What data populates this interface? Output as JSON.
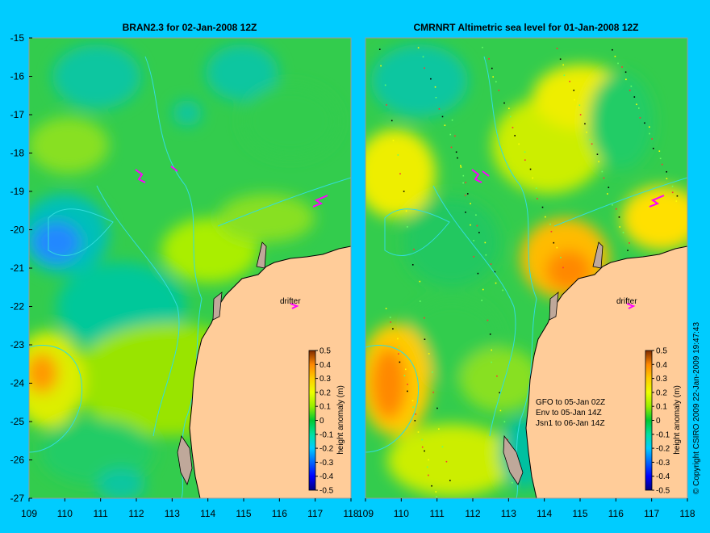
{
  "panels": [
    {
      "title": "BRAN2.3 for 02-Jan-2008 12Z",
      "drifter_label": "drifter",
      "colorbar_label": "height anomaly (m)",
      "annotations": []
    },
    {
      "title": "CMRNRT Altimetric sea level  for 01-Jan-2008 12Z",
      "drifter_label": "drifter",
      "colorbar_label": "height anomaly (m)",
      "annotations": [
        "GFO to 05-Jan 02Z",
        "Env to 05-Jan 14Z",
        "Jsn1 to 06-Jan 14Z"
      ]
    }
  ],
  "axes": {
    "lon_ticks": [
      "109",
      "110",
      "111",
      "112",
      "113",
      "114",
      "115",
      "116",
      "117",
      "118"
    ],
    "lat_ticks": [
      "-15",
      "-16",
      "-17",
      "-18",
      "-19",
      "-20",
      "-21",
      "-22",
      "-23",
      "-24",
      "-25",
      "-26",
      "-27"
    ],
    "lon_range": [
      109,
      118
    ],
    "lat_range": [
      -27,
      -15
    ]
  },
  "colorbar": {
    "ticks": [
      "0.5",
      "0.4",
      "0.3",
      "0.2",
      "0.1",
      "0",
      "-0.1",
      "-0.2",
      "-0.3",
      "-0.4",
      "-0.5"
    ],
    "range": [
      -0.5,
      0.5
    ],
    "colors": [
      "#00007f",
      "#0000ff",
      "#0066ff",
      "#00ccff",
      "#00e0a0",
      "#00c832",
      "#66e000",
      "#ccff00",
      "#ffe000",
      "#ff9900",
      "#e65c00",
      "#7f2a00"
    ]
  },
  "copyright": "© Copyright CSIRO 2009  22-Jan-2009 19:47:43",
  "colors": {
    "background": "#00ccff",
    "land": "#ffcc99",
    "coast": "#000000",
    "isobath": "#33dddd",
    "drifter": "#ff00ff"
  }
}
